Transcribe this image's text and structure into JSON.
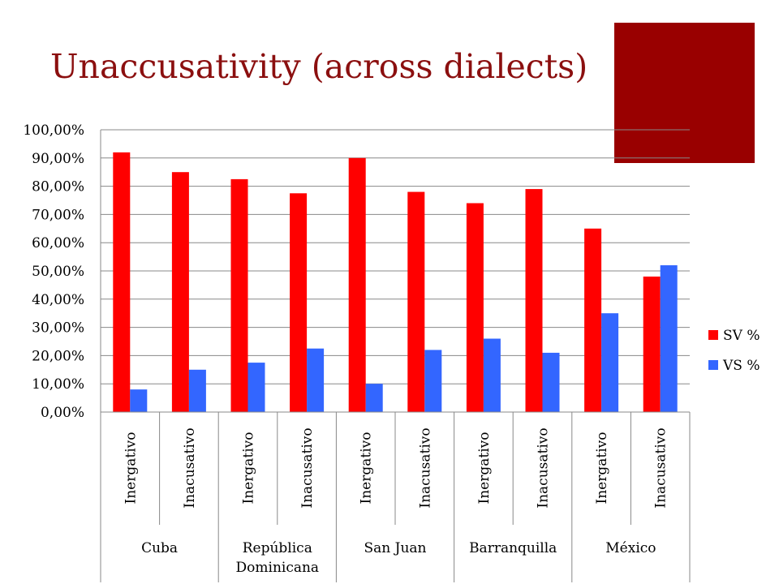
{
  "title": "Unaccusativity (across dialects)",
  "colors": {
    "title": "#8b0f0f",
    "sv": "#ff0000",
    "vs": "#3366ff",
    "deco": "#990000"
  },
  "chart_data": {
    "type": "bar",
    "categories": [
      "Inergativo",
      "Inacusativo",
      "Inergativo",
      "Inacusativo",
      "Inergativo",
      "Inacusativo",
      "Inergativo",
      "Inacusativo",
      "Inergativo",
      "Inacusativo"
    ],
    "groups": [
      {
        "label": "Cuba",
        "span": 2
      },
      {
        "label": "República Dominicana",
        "span": 2
      },
      {
        "label": "San Juan",
        "span": 2
      },
      {
        "label": "Barranquilla",
        "span": 2
      },
      {
        "label": "México",
        "span": 2
      }
    ],
    "series": [
      {
        "name": "SV %",
        "color": "#ff0000",
        "values": [
          92.0,
          85.0,
          82.5,
          77.5,
          90.0,
          78.0,
          74.0,
          79.0,
          65.0,
          48.0
        ]
      },
      {
        "name": "VS %",
        "color": "#3366ff",
        "values": [
          8.0,
          15.0,
          17.5,
          22.5,
          10.0,
          22.0,
          26.0,
          21.0,
          35.0,
          52.0
        ]
      }
    ],
    "ylim": [
      0,
      100
    ],
    "yticks": [
      "0,00%",
      "10,00%",
      "20,00%",
      "30,00%",
      "40,00%",
      "50,00%",
      "60,00%",
      "70,00%",
      "80,00%",
      "90,00%",
      "100,00%"
    ],
    "grid": true,
    "legend_position": "right"
  }
}
